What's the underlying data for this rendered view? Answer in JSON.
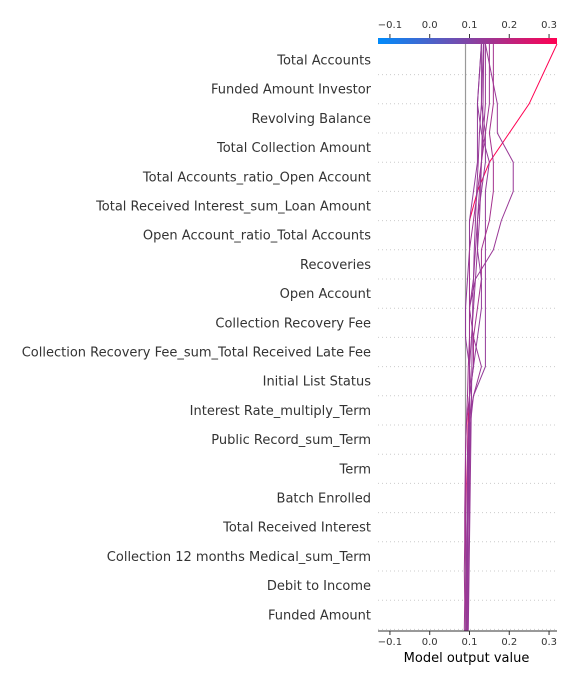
{
  "chart_data": {
    "type": "line",
    "chart_kind": "shap-decision-plot",
    "title": "",
    "xlabel": "Model output value",
    "ylabel": "",
    "xlim": [
      -0.13,
      0.32
    ],
    "xticks": [
      -0.1,
      0.0,
      0.1,
      0.2,
      0.3
    ],
    "xtick_labels": [
      "−0.1",
      "0.0",
      "0.1",
      "0.2",
      "0.3"
    ],
    "base_value": 0.09,
    "grid": "dotted horizontal lines between features",
    "colorbar": {
      "position": "top",
      "range": [
        -0.13,
        0.32
      ],
      "colors": [
        "#008bfb",
        "#ff0052"
      ]
    },
    "features": [
      "Total Accounts",
      "Funded Amount Investor",
      "Revolving Balance",
      "Total Collection Amount",
      "Total Accounts_ratio_Open Account",
      "Total Received Interest_sum_Loan Amount",
      "Open Account_ratio_Total Accounts",
      "Recoveries",
      "Open Account",
      "Collection Recovery Fee",
      "Collection Recovery Fee_sum_Total Received Late Fee",
      "Initial List Status",
      "Interest Rate_multiply_Term",
      "Public Record_sum_Term",
      "Term",
      "Batch Enrolled",
      "Total Received Interest",
      "Collection 12 months Medical_sum_Term",
      "Debit to Income",
      "Funded Amount"
    ],
    "series": [
      {
        "values": [
          0.092,
          0.092,
          0.093,
          0.094,
          0.095,
          0.094,
          0.094,
          0.095,
          0.096,
          0.1,
          0.1,
          0.1,
          0.1,
          0.1,
          0.1,
          0.1,
          0.12,
          0.15,
          0.2,
          0.25,
          0.32
        ]
      },
      {
        "values": [
          0.095,
          0.096,
          0.097,
          0.098,
          0.099,
          0.1,
          0.1,
          0.101,
          0.102,
          0.11,
          0.14,
          0.14,
          0.14,
          0.14,
          0.14,
          0.14,
          0.14,
          0.15,
          0.13,
          0.12,
          0.13
        ]
      },
      {
        "values": [
          0.09,
          0.091,
          0.092,
          0.093,
          0.093,
          0.094,
          0.095,
          0.095,
          0.097,
          0.11,
          0.13,
          0.11,
          0.1,
          0.115,
          0.16,
          0.18,
          0.21,
          0.21,
          0.17,
          0.17,
          0.14
        ]
      },
      {
        "values": [
          0.09,
          0.091,
          0.09,
          0.091,
          0.09,
          0.09,
          0.091,
          0.09,
          0.092,
          0.1,
          0.11,
          0.11,
          0.12,
          0.13,
          0.13,
          0.15,
          0.16,
          0.16,
          0.15,
          0.16,
          0.16
        ]
      },
      {
        "values": [
          0.093,
          0.094,
          0.095,
          0.095,
          0.096,
          0.097,
          0.097,
          0.098,
          0.1,
          0.1,
          0.11,
          0.12,
          0.13,
          0.13,
          0.12,
          0.12,
          0.13,
          0.14,
          0.14,
          0.13,
          0.13
        ]
      },
      {
        "values": [
          0.094,
          0.094,
          0.095,
          0.096,
          0.096,
          0.097,
          0.098,
          0.099,
          0.1,
          0.105,
          0.1,
          0.1,
          0.1,
          0.11,
          0.115,
          0.12,
          0.125,
          0.13,
          0.135,
          0.14,
          0.14
        ]
      },
      {
        "values": [
          0.09,
          0.091,
          0.092,
          0.092,
          0.093,
          0.094,
          0.095,
          0.096,
          0.098,
          0.1,
          0.1,
          0.09,
          0.09,
          0.095,
          0.1,
          0.1,
          0.11,
          0.12,
          0.12,
          0.12,
          0.13
        ]
      },
      {
        "values": [
          0.088,
          0.087,
          0.088,
          0.087,
          0.088,
          0.088,
          0.089,
          0.09,
          0.092,
          0.095,
          0.097,
          0.1,
          0.1,
          0.1,
          0.1,
          0.11,
          0.12,
          0.13,
          0.14,
          0.15,
          0.15
        ]
      },
      {
        "values": [
          0.096,
          0.097,
          0.098,
          0.099,
          0.1,
          0.101,
          0.102,
          0.103,
          0.104,
          0.105,
          0.106,
          0.107,
          0.108,
          0.11,
          0.112,
          0.115,
          0.118,
          0.122,
          0.125,
          0.13,
          0.135
        ]
      },
      {
        "values": [
          0.091,
          0.092,
          0.093,
          0.094,
          0.095,
          0.096,
          0.097,
          0.098,
          0.099,
          0.1,
          0.1,
          0.105,
          0.11,
          0.115,
          0.12,
          0.125,
          0.128,
          0.13,
          0.132,
          0.134,
          0.136
        ]
      }
    ]
  }
}
